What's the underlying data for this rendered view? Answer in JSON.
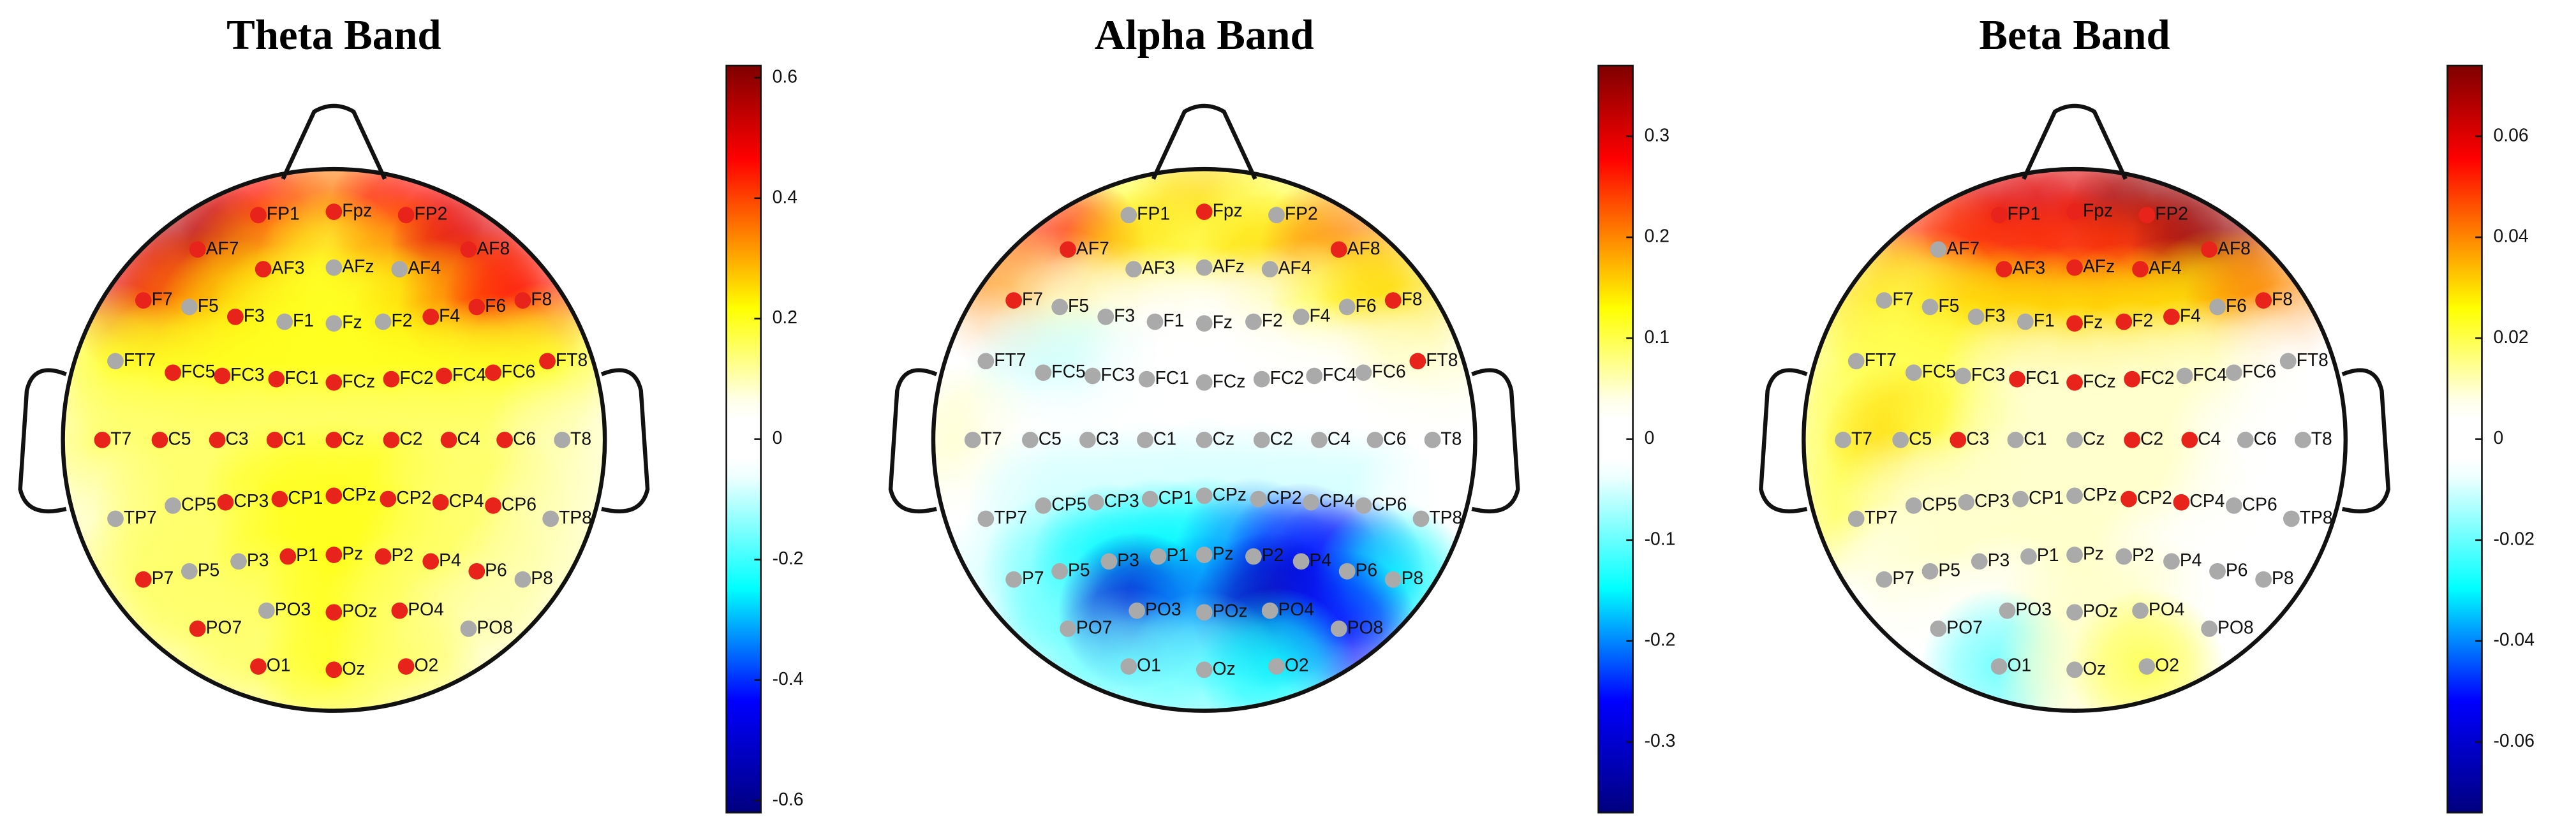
{
  "chart_data": [
    {
      "type": "topomap",
      "title": "Theta Band",
      "electrodes": [
        "FP1",
        "Fpz",
        "FP2",
        "AF7",
        "AF3",
        "AFz",
        "AF4",
        "AF8",
        "F7",
        "F5",
        "F3",
        "F1",
        "Fz",
        "F2",
        "F4",
        "F6",
        "F8",
        "FT7",
        "FC5",
        "FC3",
        "FC1",
        "FCz",
        "FC2",
        "FC4",
        "FC6",
        "FT8",
        "T7",
        "C5",
        "C3",
        "C1",
        "Cz",
        "C2",
        "C4",
        "C6",
        "T8",
        "TP7",
        "CP5",
        "CP3",
        "CP1",
        "CPz",
        "CP2",
        "CP4",
        "CP6",
        "TP8",
        "P7",
        "P5",
        "P3",
        "P1",
        "Pz",
        "P2",
        "P4",
        "P6",
        "P8",
        "PO7",
        "PO3",
        "POz",
        "PO4",
        "PO8",
        "O1",
        "Oz",
        "O2"
      ],
      "values": [
        0.45,
        0.35,
        0.45,
        0.55,
        0.3,
        0.2,
        0.3,
        0.5,
        0.5,
        0.35,
        0.25,
        0.2,
        0.2,
        0.2,
        0.25,
        0.35,
        0.45,
        0.2,
        0.2,
        0.2,
        0.2,
        0.2,
        0.2,
        0.2,
        0.2,
        0.2,
        0.15,
        0.15,
        0.15,
        0.15,
        0.15,
        0.15,
        0.15,
        0.15,
        0.1,
        0.1,
        0.15,
        0.15,
        0.2,
        0.2,
        0.2,
        0.15,
        0.15,
        0.1,
        0.15,
        0.15,
        0.15,
        0.2,
        0.2,
        0.2,
        0.15,
        0.15,
        0.1,
        0.15,
        0.15,
        0.2,
        0.15,
        0.1,
        0.15,
        0.2,
        0.15
      ],
      "marker_colors": [
        "#e8231c",
        "#e8231c",
        "#e8231c",
        "#e8231c",
        "#e8231c",
        "#aaaaaa",
        "#aaaaaa",
        "#e8231c",
        "#e8231c",
        "#aaaaaa",
        "#e8231c",
        "#aaaaaa",
        "#aaaaaa",
        "#aaaaaa",
        "#e8231c",
        "#e8231c",
        "#e8231c",
        "#aaaaaa",
        "#e8231c",
        "#e8231c",
        "#e8231c",
        "#e8231c",
        "#e8231c",
        "#e8231c",
        "#e8231c",
        "#e8231c",
        "#e8231c",
        "#e8231c",
        "#e8231c",
        "#e8231c",
        "#e8231c",
        "#e8231c",
        "#e8231c",
        "#e8231c",
        "#aaaaaa",
        "#aaaaaa",
        "#aaaaaa",
        "#e8231c",
        "#e8231c",
        "#e8231c",
        "#e8231c",
        "#e8231c",
        "#e8231c",
        "#aaaaaa",
        "#e8231c",
        "#aaaaaa",
        "#aaaaaa",
        "#e8231c",
        "#e8231c",
        "#e8231c",
        "#e8231c",
        "#e8231c",
        "#aaaaaa",
        "#e8231c",
        "#aaaaaa",
        "#e8231c",
        "#e8231c",
        "#aaaaaa",
        "#e8231c",
        "#e8231c",
        "#e8231c"
      ],
      "clim": [
        -0.62,
        0.62
      ],
      "cticks": [
        0.6,
        0.4,
        0.2,
        0,
        -0.2,
        -0.4,
        -0.6
      ]
    },
    {
      "type": "topomap",
      "title": "Alpha Band",
      "electrodes": [
        "FP1",
        "Fpz",
        "FP2",
        "AF7",
        "AF3",
        "AFz",
        "AF4",
        "AF8",
        "F7",
        "F5",
        "F3",
        "F1",
        "Fz",
        "F2",
        "F4",
        "F6",
        "F8",
        "FT7",
        "FC5",
        "FC3",
        "FC1",
        "FCz",
        "FC2",
        "FC4",
        "FC6",
        "FT8",
        "T7",
        "C5",
        "C3",
        "C1",
        "Cz",
        "C2",
        "C4",
        "C6",
        "T8",
        "TP7",
        "CP5",
        "CP3",
        "CP1",
        "CPz",
        "CP2",
        "CP4",
        "CP6",
        "TP8",
        "P7",
        "P5",
        "P3",
        "P1",
        "Pz",
        "P2",
        "P4",
        "P6",
        "P8",
        "PO7",
        "PO3",
        "POz",
        "PO4",
        "PO8",
        "O1",
        "Oz",
        "O2"
      ],
      "values": [
        0.1,
        0.15,
        0.1,
        0.25,
        0.15,
        0.1,
        0.15,
        0.2,
        0.2,
        0.05,
        0.05,
        0,
        0,
        0,
        0.05,
        0.1,
        0.15,
        0,
        -0.05,
        -0.05,
        0,
        0,
        0,
        0,
        0,
        0.05,
        0.05,
        0,
        0,
        0,
        0,
        0,
        0,
        0,
        0,
        0,
        -0.05,
        -0.05,
        -0.05,
        -0.05,
        -0.05,
        -0.05,
        -0.05,
        0,
        -0.05,
        -0.1,
        -0.15,
        -0.15,
        -0.15,
        -0.2,
        -0.25,
        -0.25,
        -0.15,
        -0.1,
        -0.3,
        -0.2,
        -0.32,
        -0.25,
        -0.1,
        -0.1,
        -0.15
      ],
      "marker_colors": [
        "#aaaaaa",
        "#e8231c",
        "#aaaaaa",
        "#e8231c",
        "#aaaaaa",
        "#aaaaaa",
        "#aaaaaa",
        "#e8231c",
        "#e8231c",
        "#aaaaaa",
        "#aaaaaa",
        "#aaaaaa",
        "#aaaaaa",
        "#aaaaaa",
        "#aaaaaa",
        "#aaaaaa",
        "#e8231c",
        "#aaaaaa",
        "#aaaaaa",
        "#aaaaaa",
        "#aaaaaa",
        "#aaaaaa",
        "#aaaaaa",
        "#aaaaaa",
        "#aaaaaa",
        "#e8231c",
        "#aaaaaa",
        "#aaaaaa",
        "#aaaaaa",
        "#aaaaaa",
        "#aaaaaa",
        "#aaaaaa",
        "#aaaaaa",
        "#aaaaaa",
        "#aaaaaa",
        "#aaaaaa",
        "#aaaaaa",
        "#aaaaaa",
        "#aaaaaa",
        "#aaaaaa",
        "#aaaaaa",
        "#aaaaaa",
        "#aaaaaa",
        "#aaaaaa",
        "#aaaaaa",
        "#aaaaaa",
        "#aaaaaa",
        "#aaaaaa",
        "#aaaaaa",
        "#aaaaaa",
        "#aaaaaa",
        "#aaaaaa",
        "#aaaaaa",
        "#aaaaaa",
        "#aaaaaa",
        "#aaaaaa",
        "#aaaaaa",
        "#aaaaaa",
        "#aaaaaa",
        "#aaaaaa",
        "#aaaaaa"
      ],
      "clim": [
        -0.37,
        0.37
      ],
      "cticks": [
        0.3,
        0.2,
        0.1,
        0,
        -0.1,
        -0.2,
        -0.3
      ]
    },
    {
      "type": "topomap",
      "title": "Beta Band",
      "electrodes": [
        "FP1",
        "Fpz",
        "FP2",
        "AF7",
        "AF3",
        "AFz",
        "AF4",
        "AF8",
        "F7",
        "F5",
        "F3",
        "F1",
        "Fz",
        "F2",
        "F4",
        "F6",
        "F8",
        "FT7",
        "FC5",
        "FC3",
        "FC1",
        "FCz",
        "FC2",
        "FC4",
        "FC6",
        "FT8",
        "T7",
        "C5",
        "C3",
        "C1",
        "Cz",
        "C2",
        "C4",
        "C6",
        "T8",
        "TP7",
        "CP5",
        "CP3",
        "CP1",
        "CPz",
        "CP2",
        "CP4",
        "CP6",
        "TP8",
        "P7",
        "P5",
        "P3",
        "P1",
        "Pz",
        "P2",
        "P4",
        "P6",
        "P8",
        "PO7",
        "PO3",
        "POz",
        "PO4",
        "PO8",
        "O1",
        "Oz",
        "O2"
      ],
      "values": [
        0.06,
        0.06,
        0.07,
        0.05,
        0.05,
        0.05,
        0.05,
        0.07,
        0.03,
        0.02,
        0.03,
        0.03,
        0.03,
        0.03,
        0.03,
        0.03,
        0.04,
        0.02,
        0.02,
        0.02,
        0.01,
        0.01,
        0.01,
        0.01,
        0.01,
        0,
        0.02,
        0.03,
        0.02,
        0.01,
        0.01,
        0.01,
        0.01,
        0,
        0,
        0.02,
        0.01,
        0.01,
        0.01,
        0.01,
        0.01,
        0.01,
        0,
        0,
        0,
        0.01,
        0.01,
        0.01,
        0.01,
        0.01,
        0,
        0,
        0,
        0,
        0,
        0.01,
        0.01,
        0,
        -0.02,
        0.01,
        0.02
      ],
      "marker_colors": [
        "#e8231c",
        "#e8231c",
        "#e8231c",
        "#aaaaaa",
        "#e8231c",
        "#e8231c",
        "#e8231c",
        "#e8231c",
        "#aaaaaa",
        "#aaaaaa",
        "#aaaaaa",
        "#aaaaaa",
        "#e8231c",
        "#e8231c",
        "#e8231c",
        "#aaaaaa",
        "#e8231c",
        "#aaaaaa",
        "#aaaaaa",
        "#aaaaaa",
        "#e8231c",
        "#e8231c",
        "#e8231c",
        "#aaaaaa",
        "#aaaaaa",
        "#aaaaaa",
        "#aaaaaa",
        "#aaaaaa",
        "#e8231c",
        "#aaaaaa",
        "#aaaaaa",
        "#e8231c",
        "#e8231c",
        "#aaaaaa",
        "#aaaaaa",
        "#aaaaaa",
        "#aaaaaa",
        "#aaaaaa",
        "#aaaaaa",
        "#aaaaaa",
        "#e8231c",
        "#e8231c",
        "#aaaaaa",
        "#aaaaaa",
        "#aaaaaa",
        "#aaaaaa",
        "#aaaaaa",
        "#aaaaaa",
        "#aaaaaa",
        "#aaaaaa",
        "#aaaaaa",
        "#aaaaaa",
        "#aaaaaa",
        "#aaaaaa",
        "#aaaaaa",
        "#aaaaaa",
        "#aaaaaa",
        "#aaaaaa",
        "#aaaaaa",
        "#aaaaaa",
        "#aaaaaa"
      ],
      "clim": [
        -0.074,
        0.074
      ],
      "cticks": [
        0.06,
        0.04,
        0.02,
        0,
        -0.02,
        -0.04,
        -0.06
      ]
    }
  ]
}
